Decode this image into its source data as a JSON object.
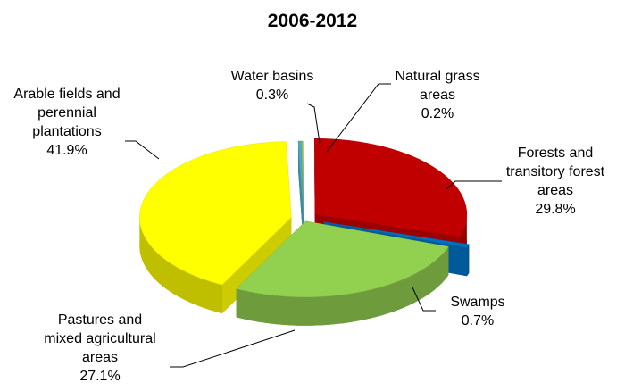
{
  "chart_data": {
    "type": "pie3d",
    "title": "2006-2012",
    "categories": [
      "Water basins",
      "Natural grass areas",
      "Forests and transitory forest areas",
      "Swamps",
      "Pastures and mixed agricultural areas",
      "Arable fields and perennial plantations"
    ],
    "values": [
      0.3,
      0.2,
      29.8,
      0.7,
      27.1,
      41.9
    ],
    "value_labels": [
      "0.3%",
      "0.2%",
      "29.8%",
      "0.7%",
      "27.1%",
      "41.9%"
    ],
    "colors": [
      "#4bacc6",
      "#9bbb59",
      "#c00000",
      "#0070c0",
      "#92d050",
      "#ffff00"
    ]
  }
}
